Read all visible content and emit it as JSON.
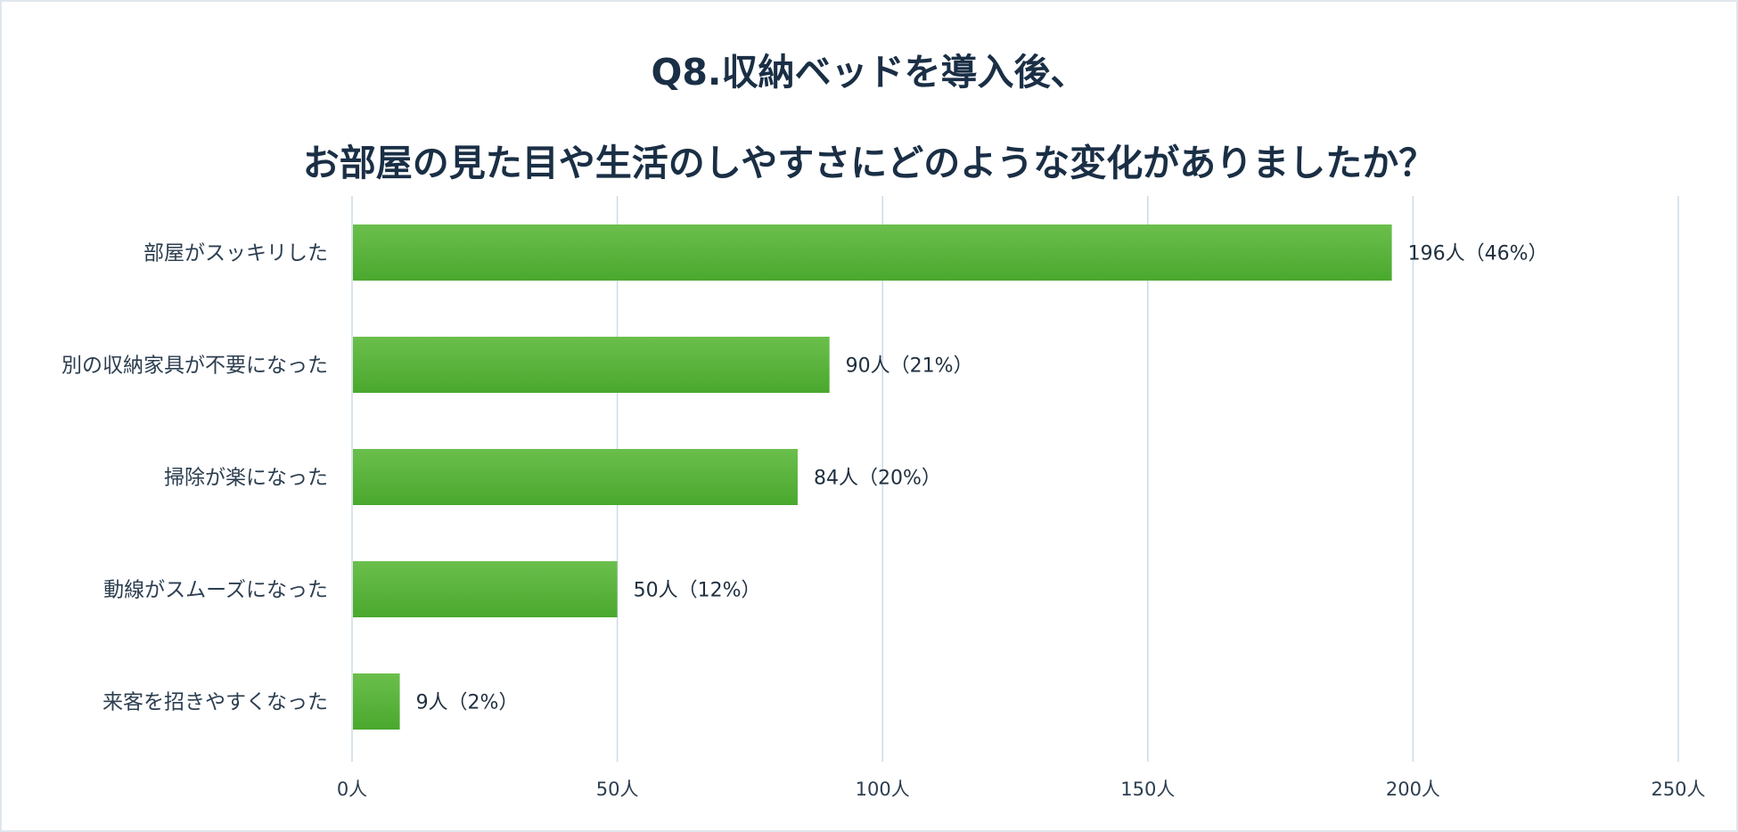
{
  "chart_data": {
    "type": "bar",
    "orientation": "horizontal",
    "title_lines": [
      "Q8.収納ベッドを導入後、",
      "お部屋の見た目や生活のしやすさにどのような変化がありましたか？"
    ],
    "categories": [
      "部屋がスッキリした",
      "別の収納家具が不要になった",
      "掃除が楽になった",
      "動線がスムーズになった",
      "来客を招きやすくなった"
    ],
    "values": [
      196,
      90,
      84,
      50,
      9
    ],
    "data_labels": [
      "196人（46%）",
      "90人（21%）",
      "84人（20%）",
      "50人（12%）",
      "9人（2%）"
    ],
    "xlim": [
      0,
      250
    ],
    "x_ticks": [
      0,
      50,
      100,
      150,
      200,
      250
    ],
    "x_tick_labels": [
      "0人",
      "50人",
      "100人",
      "150人",
      "200人",
      "250人"
    ],
    "grid": true,
    "bar_color": "#4aa82e",
    "bar_color_light": "#6bbf4c",
    "grid_color": "#ccdbe8"
  }
}
